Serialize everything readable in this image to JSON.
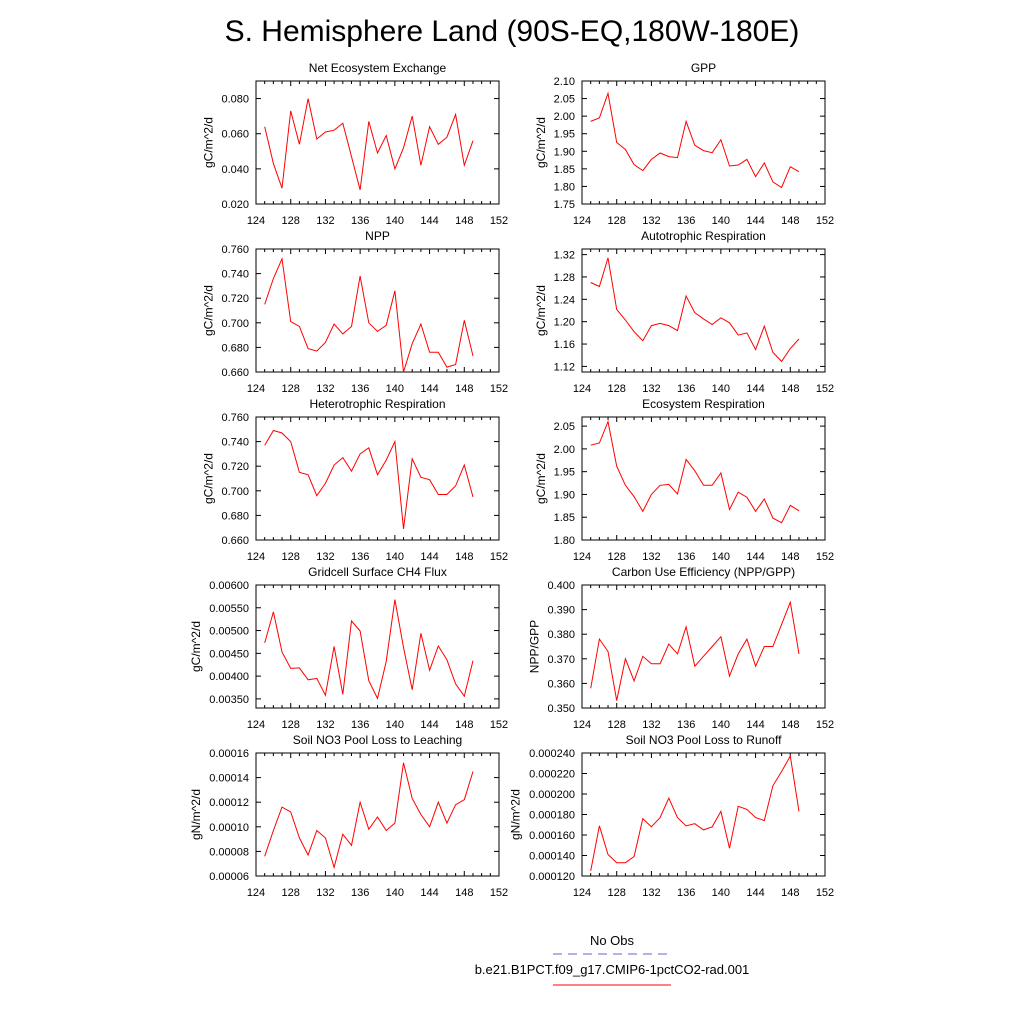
{
  "figure": {
    "title": "S. Hemisphere Land (90S-EQ,180W-180E)",
    "colors": {
      "series": "#ff0000",
      "obs": "#6666cc",
      "axis": "#000000"
    }
  },
  "legend": {
    "entries": [
      {
        "label": "No Obs",
        "color": "#6666cc",
        "dash": "dashed"
      },
      {
        "label": "b.e21.B1PCT.f09_g17.CMIP6-1pctCO2-rad.001",
        "color": "#ff0000",
        "dash": "solid"
      }
    ]
  },
  "chart_data": [
    {
      "type": "line",
      "title": "Net Ecosystem Exchange",
      "ylabel": "gC/m^2/d",
      "xlim": [
        124,
        152
      ],
      "xticks": [
        "124",
        "128",
        "132",
        "136",
        "140",
        "144",
        "148",
        "152"
      ],
      "ylim": [
        0.02,
        0.09
      ],
      "yticks": [
        "0.020",
        "0.040",
        "0.060",
        "0.080"
      ],
      "x": [
        125,
        126,
        127,
        128,
        129,
        130,
        131,
        132,
        133,
        134,
        135,
        136,
        137,
        138,
        139,
        140,
        141,
        142,
        143,
        144,
        145,
        146,
        147,
        148,
        149
      ],
      "series": [
        {
          "values": [
            0.064,
            0.043,
            0.029,
            0.073,
            0.054,
            0.08,
            0.057,
            0.061,
            0.062,
            0.066,
            0.047,
            0.028,
            0.067,
            0.049,
            0.059,
            0.04,
            0.052,
            0.07,
            0.042,
            0.064,
            0.054,
            0.058,
            0.071,
            0.042,
            0.056
          ]
        }
      ]
    },
    {
      "type": "line",
      "title": "GPP",
      "ylabel": "gC/m^2/d",
      "xlim": [
        124,
        152
      ],
      "xticks": [
        "124",
        "128",
        "132",
        "136",
        "140",
        "144",
        "148",
        "152"
      ],
      "ylim": [
        1.75,
        2.1
      ],
      "yticks": [
        "1.75",
        "1.80",
        "1.85",
        "1.90",
        "1.95",
        "2.00",
        "2.05",
        "2.10"
      ],
      "x": [
        125,
        126,
        127,
        128,
        129,
        130,
        131,
        132,
        133,
        134,
        135,
        136,
        137,
        138,
        139,
        140,
        141,
        142,
        143,
        144,
        145,
        146,
        147,
        148,
        149
      ],
      "series": [
        {
          "values": [
            1.985,
            1.995,
            2.065,
            1.925,
            1.905,
            1.862,
            1.845,
            1.877,
            1.895,
            1.885,
            1.882,
            1.985,
            1.917,
            1.902,
            1.896,
            1.933,
            1.858,
            1.861,
            1.877,
            1.828,
            1.867,
            1.813,
            1.797,
            1.856,
            1.842
          ]
        }
      ]
    },
    {
      "type": "line",
      "title": "NPP",
      "ylabel": "gC/m^2/d",
      "xlim": [
        124,
        152
      ],
      "xticks": [
        "124",
        "128",
        "132",
        "136",
        "140",
        "144",
        "148",
        "152"
      ],
      "ylim": [
        0.66,
        0.76
      ],
      "yticks": [
        "0.660",
        "0.680",
        "0.700",
        "0.720",
        "0.740",
        "0.760"
      ],
      "x": [
        125,
        126,
        127,
        128,
        129,
        130,
        131,
        132,
        133,
        134,
        135,
        136,
        137,
        138,
        139,
        140,
        141,
        142,
        143,
        144,
        145,
        146,
        147,
        148,
        149
      ],
      "series": [
        {
          "values": [
            0.715,
            0.736,
            0.752,
            0.701,
            0.697,
            0.679,
            0.677,
            0.684,
            0.699,
            0.691,
            0.697,
            0.738,
            0.7,
            0.693,
            0.698,
            0.726,
            0.66,
            0.683,
            0.699,
            0.676,
            0.676,
            0.664,
            0.666,
            0.702,
            0.673
          ]
        }
      ]
    },
    {
      "type": "line",
      "title": "Autotrophic Respiration",
      "ylabel": "gC/m^2/d",
      "xlim": [
        124,
        152
      ],
      "xticks": [
        "124",
        "128",
        "132",
        "136",
        "140",
        "144",
        "148",
        "152"
      ],
      "ylim": [
        1.11,
        1.33
      ],
      "yticks": [
        "1.12",
        "1.16",
        "1.20",
        "1.24",
        "1.28",
        "1.32"
      ],
      "x": [
        125,
        126,
        127,
        128,
        129,
        130,
        131,
        132,
        133,
        134,
        135,
        136,
        137,
        138,
        139,
        140,
        141,
        142,
        143,
        144,
        145,
        146,
        147,
        148,
        149
      ],
      "series": [
        {
          "values": [
            1.27,
            1.263,
            1.314,
            1.222,
            1.203,
            1.182,
            1.166,
            1.193,
            1.197,
            1.193,
            1.184,
            1.246,
            1.216,
            1.205,
            1.195,
            1.207,
            1.198,
            1.176,
            1.18,
            1.15,
            1.192,
            1.145,
            1.129,
            1.152,
            1.169
          ]
        }
      ]
    },
    {
      "type": "line",
      "title": "Heterotrophic Respiration",
      "ylabel": "gC/m^2/d",
      "xlim": [
        124,
        152
      ],
      "xticks": [
        "124",
        "128",
        "132",
        "136",
        "140",
        "144",
        "148",
        "152"
      ],
      "ylim": [
        0.66,
        0.76
      ],
      "yticks": [
        "0.660",
        "0.680",
        "0.700",
        "0.720",
        "0.740",
        "0.760"
      ],
      "x": [
        125,
        126,
        127,
        128,
        129,
        130,
        131,
        132,
        133,
        134,
        135,
        136,
        137,
        138,
        139,
        140,
        141,
        142,
        143,
        144,
        145,
        146,
        147,
        148,
        149
      ],
      "series": [
        {
          "values": [
            0.737,
            0.749,
            0.747,
            0.74,
            0.715,
            0.713,
            0.696,
            0.706,
            0.721,
            0.727,
            0.716,
            0.73,
            0.735,
            0.713,
            0.725,
            0.74,
            0.669,
            0.726,
            0.711,
            0.709,
            0.697,
            0.697,
            0.704,
            0.721,
            0.695
          ]
        }
      ]
    },
    {
      "type": "line",
      "title": "Ecosystem Respiration",
      "ylabel": "gC/m^2/d",
      "xlim": [
        124,
        152
      ],
      "xticks": [
        "124",
        "128",
        "132",
        "136",
        "140",
        "144",
        "148",
        "152"
      ],
      "ylim": [
        1.8,
        2.07
      ],
      "yticks": [
        "1.80",
        "1.85",
        "1.90",
        "1.95",
        "2.00",
        "2.05"
      ],
      "x": [
        125,
        126,
        127,
        128,
        129,
        130,
        131,
        132,
        133,
        134,
        135,
        136,
        137,
        138,
        139,
        140,
        141,
        142,
        143,
        144,
        145,
        146,
        147,
        148,
        149
      ],
      "series": [
        {
          "values": [
            2.008,
            2.013,
            2.06,
            1.962,
            1.92,
            1.895,
            1.863,
            1.9,
            1.92,
            1.922,
            1.901,
            1.977,
            1.952,
            1.92,
            1.92,
            1.947,
            1.867,
            1.905,
            1.894,
            1.863,
            1.89,
            1.848,
            1.838,
            1.876,
            1.864
          ]
        }
      ]
    },
    {
      "type": "line",
      "title": "Gridcell Surface CH4 Flux",
      "ylabel": "gC/m^2/d",
      "xlim": [
        124,
        152
      ],
      "xticks": [
        "124",
        "128",
        "132",
        "136",
        "140",
        "144",
        "148",
        "152"
      ],
      "ylim": [
        0.0033,
        0.006
      ],
      "yticks": [
        "0.00350",
        "0.00400",
        "0.00450",
        "0.00500",
        "0.00550",
        "0.00600"
      ],
      "x": [
        125,
        126,
        127,
        128,
        129,
        130,
        131,
        132,
        133,
        134,
        135,
        136,
        137,
        138,
        139,
        140,
        141,
        142,
        143,
        144,
        145,
        146,
        147,
        148,
        149
      ],
      "series": [
        {
          "values": [
            0.00473,
            0.00541,
            0.00453,
            0.00417,
            0.00418,
            0.00392,
            0.00395,
            0.00358,
            0.00465,
            0.0036,
            0.00521,
            0.00499,
            0.0039,
            0.00351,
            0.00432,
            0.00568,
            0.00463,
            0.0037,
            0.00494,
            0.00413,
            0.00466,
            0.00436,
            0.00383,
            0.00356,
            0.00434
          ]
        }
      ]
    },
    {
      "type": "line",
      "title": "Carbon Use Efficiency (NPP/GPP)",
      "ylabel": "NPP/GPP",
      "xlim": [
        124,
        152
      ],
      "xticks": [
        "124",
        "128",
        "132",
        "136",
        "140",
        "144",
        "148",
        "152"
      ],
      "ylim": [
        0.35,
        0.4
      ],
      "yticks": [
        "0.350",
        "0.360",
        "0.370",
        "0.380",
        "0.390",
        "0.400"
      ],
      "x": [
        125,
        126,
        127,
        128,
        129,
        130,
        131,
        132,
        133,
        134,
        135,
        136,
        137,
        138,
        139,
        140,
        141,
        142,
        143,
        144,
        145,
        146,
        147,
        148,
        149
      ],
      "series": [
        {
          "values": [
            0.358,
            0.378,
            0.373,
            0.353,
            0.37,
            0.361,
            0.371,
            0.368,
            0.368,
            0.376,
            0.372,
            0.383,
            0.367,
            0.371,
            0.375,
            0.379,
            0.363,
            0.372,
            0.378,
            0.367,
            0.375,
            0.375,
            0.384,
            0.393,
            0.372
          ]
        }
      ]
    },
    {
      "type": "line",
      "title": "Soil NO3 Pool Loss to Leaching",
      "ylabel": "gN/m^2/d",
      "xlim": [
        124,
        152
      ],
      "xticks": [
        "124",
        "128",
        "132",
        "136",
        "140",
        "144",
        "148",
        "152"
      ],
      "ylim": [
        6e-05,
        0.00016
      ],
      "yticks": [
        "0.00006",
        "0.00008",
        "0.00010",
        "0.00012",
        "0.00014",
        "0.00016"
      ],
      "x": [
        125,
        126,
        127,
        128,
        129,
        130,
        131,
        132,
        133,
        134,
        135,
        136,
        137,
        138,
        139,
        140,
        141,
        142,
        143,
        144,
        145,
        146,
        147,
        148,
        149
      ],
      "series": [
        {
          "values": [
            7.6e-05,
            9.7e-05,
            0.000116,
            0.000112,
            9.1e-05,
            7.7e-05,
            9.7e-05,
            9.1e-05,
            6.7e-05,
            9.4e-05,
            8.5e-05,
            0.00012,
            9.8e-05,
            0.000108,
            9.7e-05,
            0.000103,
            0.000152,
            0.000123,
            0.00011,
            0.0001,
            0.00012,
            0.000103,
            0.000118,
            0.000122,
            0.000145
          ]
        }
      ]
    },
    {
      "type": "line",
      "title": "Soil NO3 Pool Loss to Runoff",
      "ylabel": "gN/m^2/d",
      "xlim": [
        124,
        152
      ],
      "xticks": [
        "124",
        "128",
        "132",
        "136",
        "140",
        "144",
        "148",
        "152"
      ],
      "ylim": [
        0.00012,
        0.00024
      ],
      "yticks": [
        "0.000120",
        "0.000140",
        "0.000160",
        "0.000180",
        "0.000200",
        "0.000220",
        "0.000240"
      ],
      "x": [
        125,
        126,
        127,
        128,
        129,
        130,
        131,
        132,
        133,
        134,
        135,
        136,
        137,
        138,
        139,
        140,
        141,
        142,
        143,
        144,
        145,
        146,
        147,
        148,
        149
      ],
      "series": [
        {
          "values": [
            0.000125,
            0.000169,
            0.000141,
            0.000133,
            0.000133,
            0.000139,
            0.000176,
            0.000168,
            0.000177,
            0.000196,
            0.000177,
            0.000169,
            0.000171,
            0.000165,
            0.000168,
            0.000183,
            0.000147,
            0.000188,
            0.000185,
            0.000177,
            0.000174,
            0.000208,
            0.000222,
            0.000237,
            0.000183
          ]
        }
      ]
    }
  ]
}
